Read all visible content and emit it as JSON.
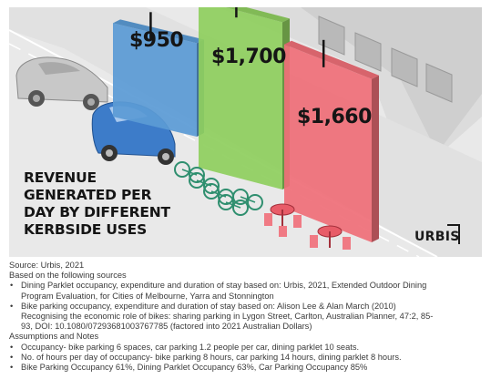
{
  "chart_data": {
    "type": "bar",
    "title": "REVENUE GENERATED PER DAY BY DIFFERENT KERBSIDE USES",
    "title_lines": [
      "REVENUE",
      "GENERATED PER",
      "DAY BY DIFFERENT",
      "KERBSIDE USES"
    ],
    "categories": [
      "Car parking",
      "Bike parking",
      "Dining parklet"
    ],
    "values": [
      950,
      1700,
      1660
    ],
    "value_labels": [
      "$950",
      "$1,700",
      "$1,660"
    ],
    "colors": [
      "#5b9bd5",
      "#8fcf5f",
      "#ef6f78"
    ],
    "ylim": [
      0,
      1800
    ],
    "grid": false,
    "legend": "none"
  },
  "logo": "URBIS",
  "notes": {
    "source": "Source: Urbis, 2021",
    "based_on": "Based on the following sources",
    "sources": [
      [
        "Dining Parklet occupancy, expenditure and duration of stay based on: Urbis, 2021, Extended Outdoor Dining",
        "Program Evaluation, for Cities of Melbourne, Yarra and Stonnington"
      ],
      [
        "Bike parking occupancy, expenditure and duration of stay based on: Alison Lee & Alan March (2010)",
        "Recognising the economic role of bikes: sharing parking in Lygon Street, Carlton, Australian Planner, 47:2, 85-",
        "93, DOI: 10.1080/07293681003767785 (factored into 2021 Australian Dollars)"
      ]
    ],
    "assumptions_heading": "Assumptions and Notes",
    "assumptions": [
      "Occupancy- bike parking 6 spaces, car parking 1.2 people per car, dining parklet 10 seats.",
      "No. of hours per day of occupancy- bike parking 8 hours, car parking 14 hours, dining parklet 8 hours.",
      "Bike Parking Occupancy 61%, Dining Parklet Occupancy 63%, Car Parking Occupancy 85%"
    ]
  }
}
